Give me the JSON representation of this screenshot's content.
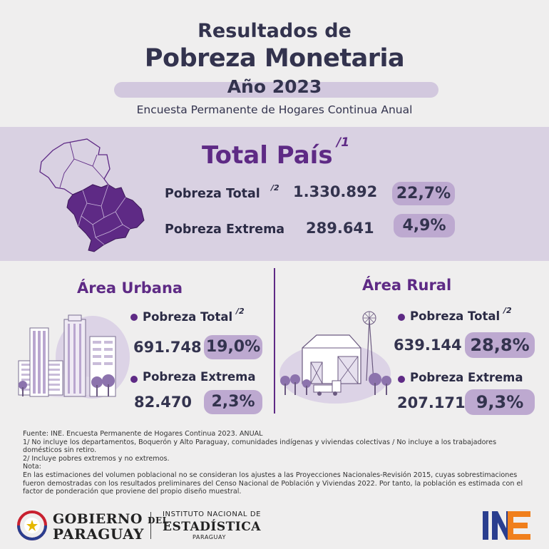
{
  "header": {
    "line1": "Resultados de",
    "line2": "Pobreza Monetaria",
    "year": "Año 2023",
    "subtitle": "Encuesta Permanente de Hogares Continua Anual"
  },
  "total_pais": {
    "title": "Total País",
    "title_note": "/1",
    "pobreza_total_label": "Pobreza Total",
    "pobreza_total_note": "/2",
    "pobreza_total_value": "1.330.892",
    "pobreza_total_pct": "22,7%",
    "pobreza_extrema_label": "Pobreza Extrema",
    "pobreza_extrema_value": "289.641",
    "pobreza_extrema_pct": "4,9%"
  },
  "urbana": {
    "title": "Área Urbana",
    "pobreza_total_label": "Pobreza Total",
    "pobreza_total_note": "/2",
    "pobreza_total_value": "691.748",
    "pobreza_total_pct": "19,0%",
    "pobreza_extrema_label": "Pobreza Extrema",
    "pobreza_extrema_value": "82.470",
    "pobreza_extrema_pct": "2,3%"
  },
  "rural": {
    "title": "Área Rural",
    "pobreza_total_label": "Pobreza Total",
    "pobreza_total_note": "/2",
    "pobreza_total_value": "639.144",
    "pobreza_total_pct": "28,8%",
    "pobreza_extrema_label": "Pobreza Extrema",
    "pobreza_extrema_value": "207.171",
    "pobreza_extrema_pct": "9,3%"
  },
  "notes": {
    "fuente": "Fuente: INE. Encuesta Permanente de Hogares Continua 2023. ANUAL",
    "n1": "1/ No incluye los departamentos, Boquerón y Alto Paraguay, comunidades indígenas y viviendas colectivas / No incluye a los trabajadores domésticos sin retiro.",
    "n2": "2/ Incluye pobres extremos y no extremos.",
    "nota_label": "Nota:",
    "nota": "En las estimaciones del volumen poblacional no se consideran los ajustes a las Proyecciones Nacionales-Revisión 2015, cuyas sobrestimaciones fueron demostradas con los resultados preliminares del Censo Nacional de Población y Viviendas 2022. Por tanto, la población es estimada con el factor de ponderación que proviene del propio diseño muestral."
  },
  "footer": {
    "gobierno": "GOBIERNO",
    "del": "DEL",
    "paraguay": "PARAGUAY",
    "ine_line1": "INSTITUTO NACIONAL DE",
    "ine_line2": "ESTADÍSTICA",
    "ine_line3": "PARAGUAY",
    "ine_logo": "INE"
  },
  "colors": {
    "accent": "#5e2a85",
    "band": "#d9d1e2",
    "pill": "#bda9d0",
    "text": "#33334e",
    "background": "#efeeee"
  }
}
